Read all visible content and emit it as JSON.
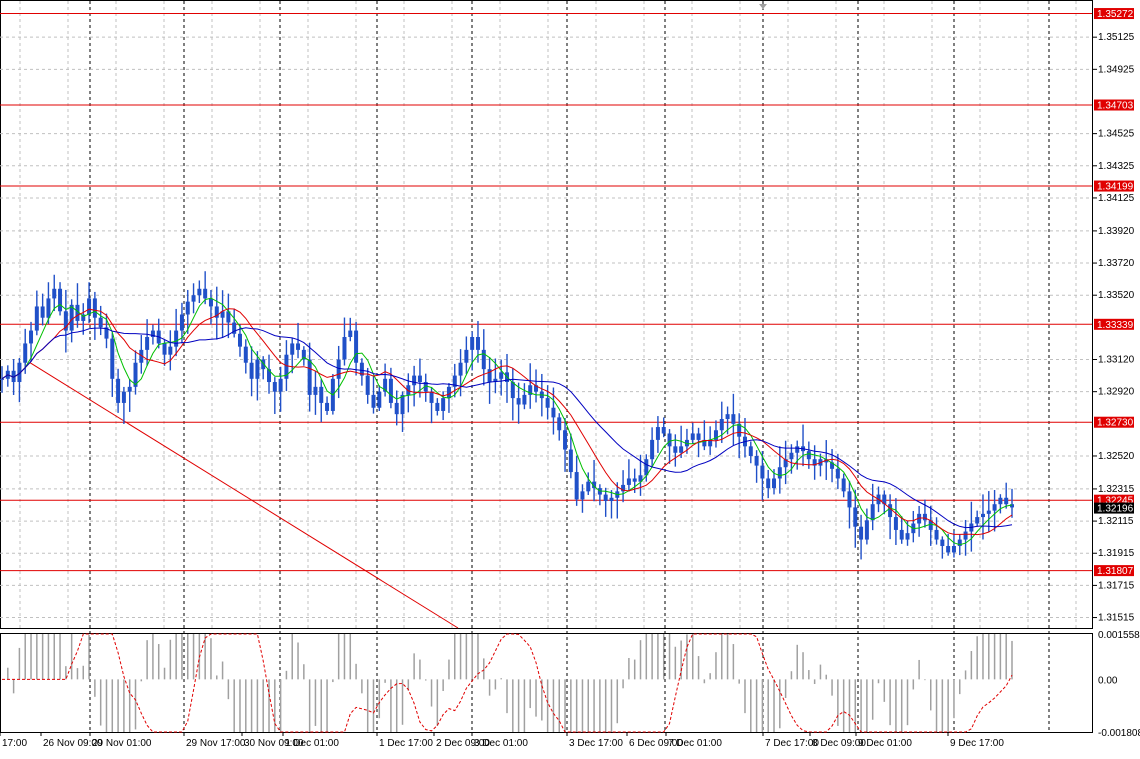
{
  "chart_data": {
    "type": "line",
    "symbol_hint": "",
    "price_panel": {
      "ylim": [
        1.3145,
        1.3535
      ],
      "y_ticks": [
        "1.35125",
        "1.34925",
        "1.34525",
        "1.34325",
        "1.34125",
        "1.33920",
        "1.33720",
        "1.33520",
        "1.33120",
        "1.32920",
        "1.32520",
        "1.32315",
        "1.32115",
        "1.31915",
        "1.31715",
        "1.31515"
      ],
      "level_lines": [
        {
          "value": 1.35272,
          "label": "1.35272"
        },
        {
          "value": 1.34703,
          "label": "1.34703"
        },
        {
          "value": 1.34199,
          "label": "1.34199"
        },
        {
          "value": 1.33339,
          "label": "1.33339"
        },
        {
          "value": 1.3273,
          "label": "1.32730"
        },
        {
          "value": 1.32245,
          "label": "1.32245"
        },
        {
          "value": 1.31807,
          "label": "1.31807"
        }
      ],
      "current_price": {
        "value": 1.32196,
        "label": "1.32196"
      },
      "trendline": {
        "from": {
          "bar": 0,
          "value": 1.3335
        },
        "to": {
          "bar": 185,
          "value": 1.3148
        }
      },
      "bars_total": 200,
      "candles_close_approx": [
        1.33,
        1.3305,
        1.3298,
        1.331,
        1.3322,
        1.333,
        1.3345,
        1.3338,
        1.335,
        1.3356,
        1.3342,
        1.333,
        1.3346,
        1.3336,
        1.334,
        1.335,
        1.3338,
        1.3332,
        1.3325,
        1.33,
        1.3285,
        1.3292,
        1.3295,
        1.331,
        1.3318,
        1.3326,
        1.333,
        1.3322,
        1.3315,
        1.332,
        1.333,
        1.334,
        1.3348,
        1.3352,
        1.3356,
        1.335,
        1.3345,
        1.3338,
        1.3342,
        1.3335,
        1.3328,
        1.332,
        1.331,
        1.33,
        1.3312,
        1.3306,
        1.3298,
        1.3292,
        1.33,
        1.3315,
        1.3322,
        1.3318,
        1.3312,
        1.329,
        1.3295,
        1.3285,
        1.328,
        1.33,
        1.3312,
        1.3326,
        1.333,
        1.331,
        1.3302,
        1.329,
        1.3282,
        1.3292,
        1.33,
        1.3285,
        1.3278,
        1.329,
        1.3296,
        1.3302,
        1.3298,
        1.3292,
        1.3285,
        1.328,
        1.3288,
        1.3295,
        1.3302,
        1.331,
        1.3318,
        1.3326,
        1.3318,
        1.3306,
        1.3298,
        1.33,
        1.3304,
        1.3298,
        1.3288,
        1.3284,
        1.329,
        1.3296,
        1.3292,
        1.3288,
        1.3282,
        1.3276,
        1.3268,
        1.3256,
        1.3242,
        1.3225,
        1.323,
        1.3236,
        1.3232,
        1.3228,
        1.3224,
        1.3226,
        1.323,
        1.3234,
        1.3238,
        1.3236,
        1.324,
        1.325,
        1.3262,
        1.327,
        1.3266,
        1.3258,
        1.3254,
        1.3258,
        1.3262,
        1.3266,
        1.3262,
        1.3258,
        1.3262,
        1.3268,
        1.3275,
        1.3278,
        1.3272,
        1.3264,
        1.3258,
        1.3252,
        1.3246,
        1.3238,
        1.3232,
        1.3238,
        1.3245,
        1.325,
        1.3254,
        1.3258,
        1.3255,
        1.325,
        1.3246,
        1.325,
        1.3248,
        1.3244,
        1.3238,
        1.323,
        1.322,
        1.3208,
        1.32,
        1.3212,
        1.3222,
        1.3228,
        1.3222,
        1.3214,
        1.3206,
        1.32,
        1.3204,
        1.321,
        1.3216,
        1.3212,
        1.3206,
        1.32,
        1.3196,
        1.3192,
        1.3196,
        1.32,
        1.3205,
        1.321,
        1.3214,
        1.3216,
        1.3218,
        1.3222,
        1.3226,
        1.3222,
        1.322
      ],
      "ma_series": [
        {
          "color": "#00c000"
        },
        {
          "color": "#e00000"
        },
        {
          "color": "#0000c0"
        }
      ]
    },
    "oscillator_panel": {
      "ylim": [
        -0.001808,
        0.001558
      ],
      "y_ticks": [
        "0.001558",
        "0.00",
        "-0.001808"
      ],
      "histogram_color": "#a0a0a0",
      "signal_color": "#e00000"
    },
    "x_ticks": [
      "17:00",
      "26 Nov 09:00",
      "29 Nov 01:00",
      "29 Nov 17:00",
      "30 Nov 09:00",
      "1 Dec 01:00",
      "1 Dec 17:00",
      "2 Dec 09:00",
      "3 Dec 01:00",
      "3 Dec 17:00",
      "6 Dec 09:00",
      "7 Dec 01:00",
      "7 Dec 17:00",
      "8 Dec 09:00",
      "9 Dec 01:00",
      "9 Dec 17:00"
    ],
    "grid": true
  }
}
